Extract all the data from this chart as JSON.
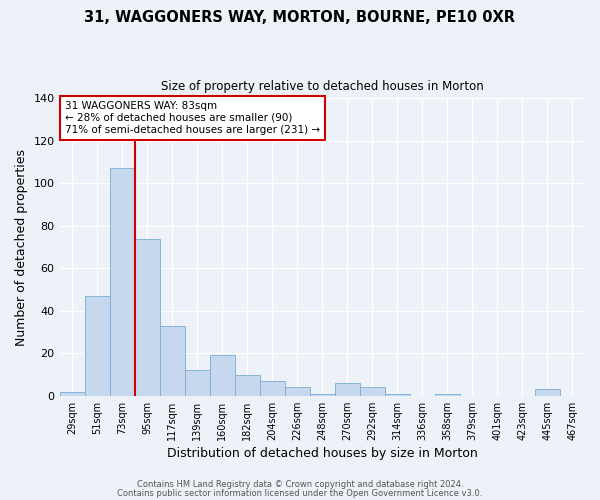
{
  "title": "31, WAGGONERS WAY, MORTON, BOURNE, PE10 0XR",
  "subtitle": "Size of property relative to detached houses in Morton",
  "xlabel": "Distribution of detached houses by size in Morton",
  "ylabel": "Number of detached properties",
  "bar_labels": [
    "29sqm",
    "51sqm",
    "73sqm",
    "95sqm",
    "117sqm",
    "139sqm",
    "160sqm",
    "182sqm",
    "204sqm",
    "226sqm",
    "248sqm",
    "270sqm",
    "292sqm",
    "314sqm",
    "336sqm",
    "358sqm",
    "379sqm",
    "401sqm",
    "423sqm",
    "445sqm",
    "467sqm"
  ],
  "bar_values": [
    2,
    47,
    107,
    74,
    33,
    12,
    19,
    10,
    7,
    4,
    1,
    6,
    4,
    1,
    0,
    1,
    0,
    0,
    0,
    3,
    0
  ],
  "bar_color": "#c5d8ee",
  "bar_edge_color": "#7aadd4",
  "ylim": [
    0,
    140
  ],
  "yticks": [
    0,
    20,
    40,
    60,
    80,
    100,
    120,
    140
  ],
  "red_line_bin_index": 2,
  "red_line_color": "#cc0000",
  "annotation_title": "31 WAGGONERS WAY: 83sqm",
  "annotation_line1": "← 28% of detached houses are smaller (90)",
  "annotation_line2": "71% of semi-detached houses are larger (231) →",
  "annotation_box_facecolor": "#ffffff",
  "annotation_box_edgecolor": "#cc0000",
  "footer1": "Contains HM Land Registry data © Crown copyright and database right 2024.",
  "footer2": "Contains public sector information licensed under the Open Government Licence v3.0.",
  "background_color": "#edf2f9"
}
